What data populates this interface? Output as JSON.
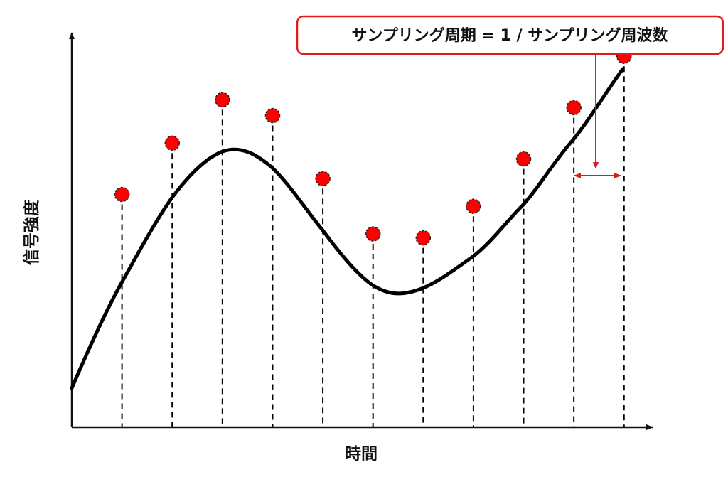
{
  "labels": {
    "y_axis": "信号強度",
    "x_axis": "時間",
    "callout": "サンプリング周期 = 1 / サンプリング周波数"
  },
  "colors": {
    "curve": "#000000",
    "sample_point": "#ff0000",
    "callout_border": "#e01b1b",
    "callout_arrow": "#e01b1b",
    "axis": "#111111"
  },
  "chart_data": {
    "type": "scatter",
    "x": [
      1,
      2,
      3,
      4,
      5,
      6,
      7,
      8,
      9,
      10,
      11
    ],
    "y": [
      0.59,
      0.72,
      0.83,
      0.79,
      0.63,
      0.49,
      0.48,
      0.56,
      0.68,
      0.81,
      0.94
    ],
    "xlim": [
      0,
      11.4
    ],
    "ylim": [
      0,
      1
    ],
    "grid": false,
    "xlabel": "時間",
    "ylabel": "信号強度"
  }
}
